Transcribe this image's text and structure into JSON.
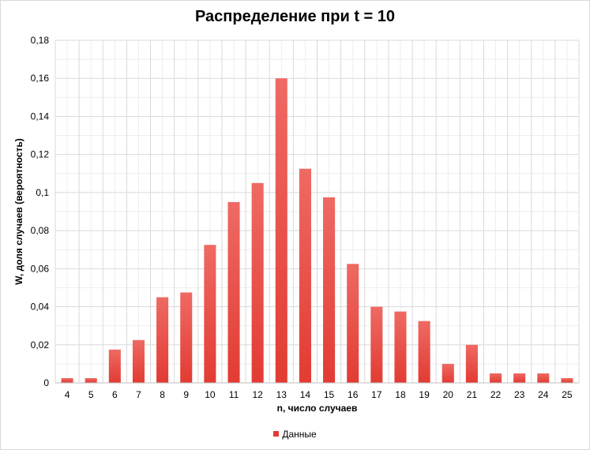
{
  "chart_data": {
    "type": "bar",
    "title": "Распределение при t = 10",
    "xlabel": "n, число случаев",
    "ylabel": "W, доля случаев (вероятность)",
    "categories": [
      "4",
      "5",
      "6",
      "7",
      "8",
      "9",
      "10",
      "11",
      "12",
      "13",
      "14",
      "15",
      "16",
      "17",
      "18",
      "19",
      "20",
      "21",
      "22",
      "23",
      "24",
      "25"
    ],
    "series": [
      {
        "name": "Данные",
        "color": "#e23b33",
        "values": [
          0.0025,
          0.0025,
          0.0175,
          0.0225,
          0.045,
          0.0475,
          0.0725,
          0.095,
          0.105,
          0.16,
          0.1125,
          0.0975,
          0.0625,
          0.04,
          0.0375,
          0.0325,
          0.01,
          0.02,
          0.005,
          0.005,
          0.005,
          0.0025
        ]
      }
    ],
    "ylim": [
      0,
      0.18
    ],
    "yticks": [
      "0",
      "0,02",
      "0,04",
      "0,06",
      "0,08",
      "0,1",
      "0,12",
      "0,14",
      "0,16",
      "0,18"
    ],
    "grid": true,
    "legend_position": "bottom"
  }
}
